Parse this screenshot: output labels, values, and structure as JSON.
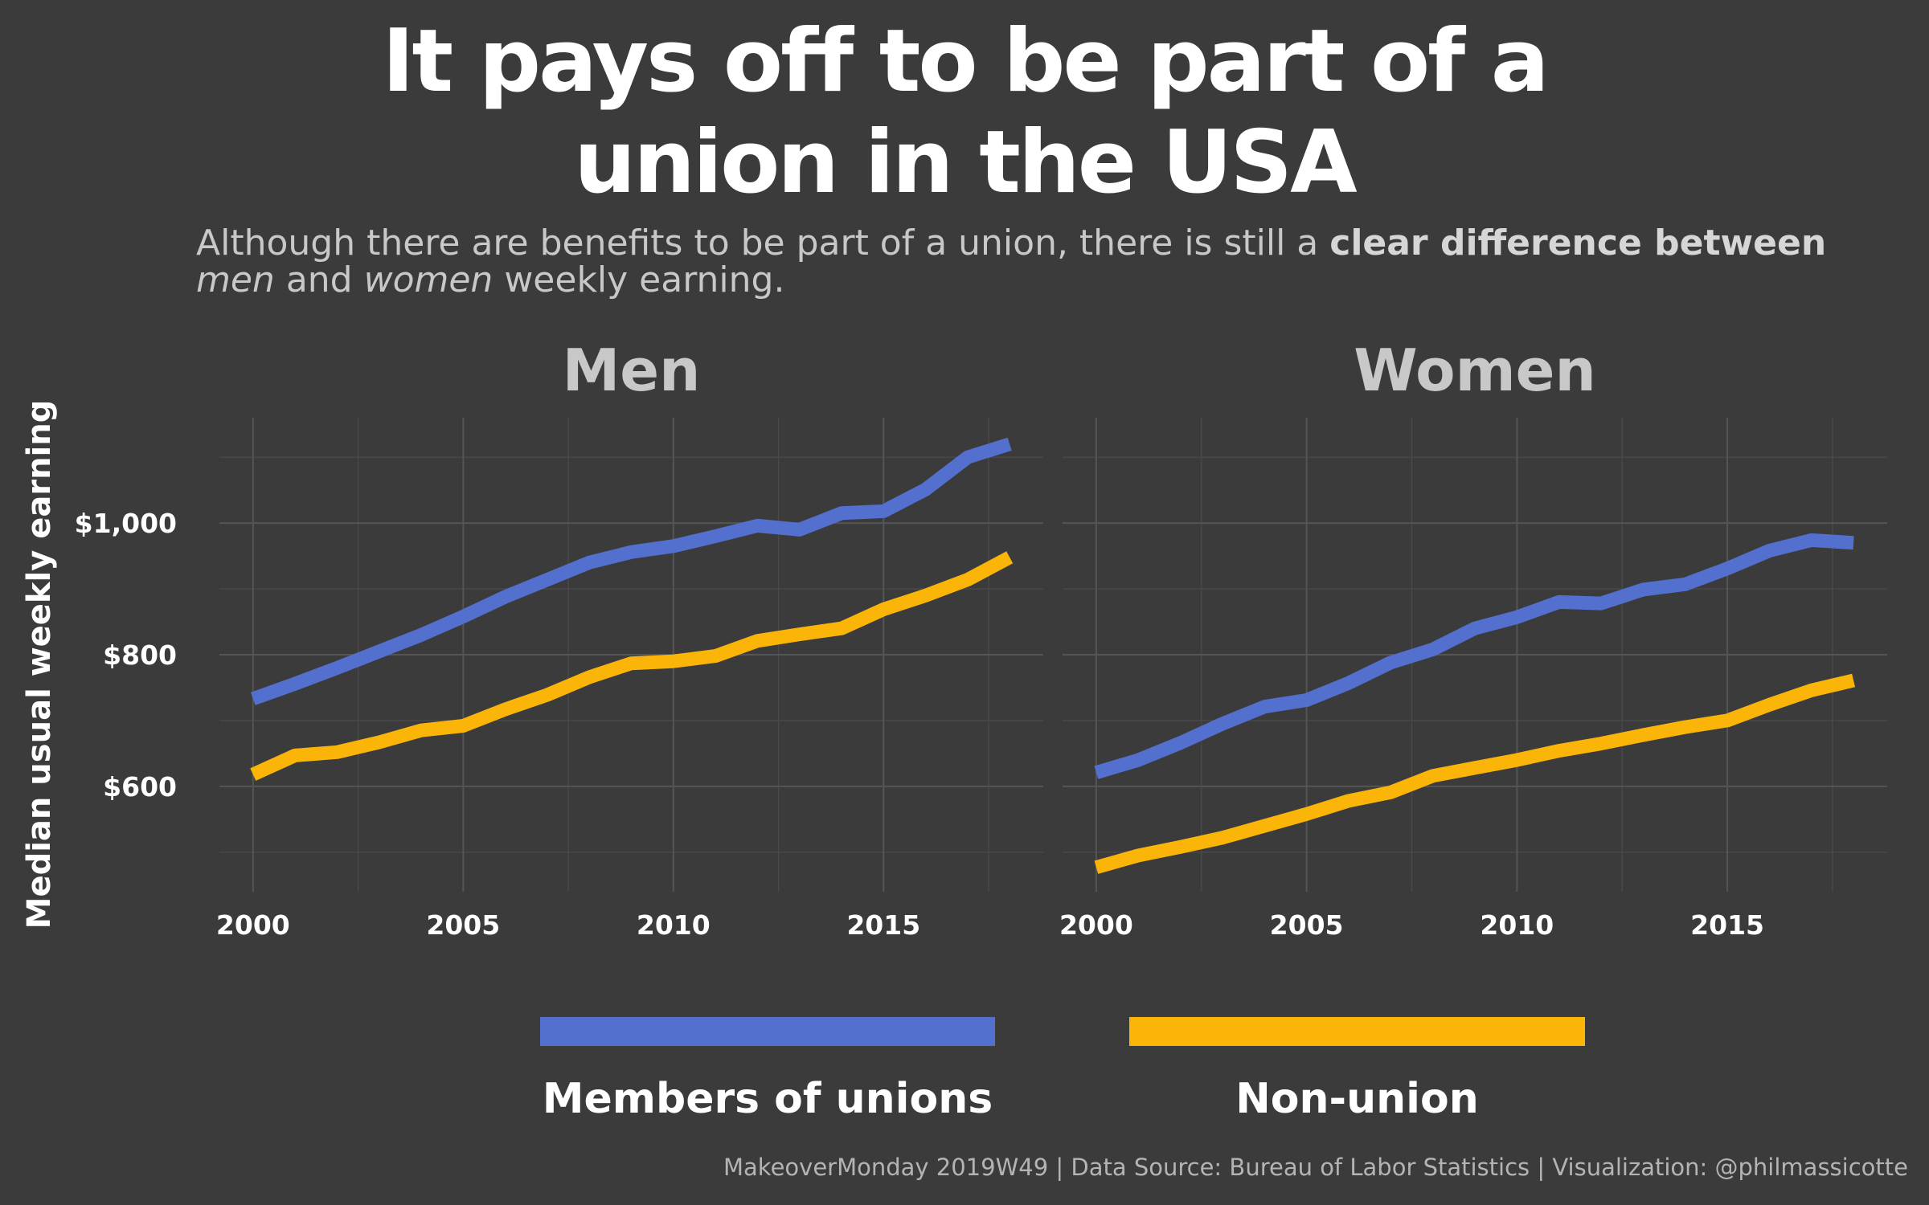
{
  "title_line1": "It pays off to be part of a",
  "title_line2": "union in the USA",
  "subtitle": {
    "part1": "Although there are benefits to be part of a union, there is still a ",
    "bold": "clear difference between",
    "men": "men",
    "and": " and ",
    "women": "women",
    "tail": " weekly earning."
  },
  "caption": "MakeoverMonday 2019W49 | Data Source: Bureau of Labor Statistics | Visualization: @philmassicotte",
  "colors": {
    "background": "#3b3b3b",
    "union": "#5470cf",
    "nonunion": "#fbb509",
    "grid": "#4a4a4a"
  },
  "chart_data": {
    "type": "line",
    "ylabel": "Median usual weekly earning",
    "xlabel": "",
    "ylim": [
      440,
      1160
    ],
    "xlim": [
      1999.2,
      2018.8
    ],
    "y_ticks": [
      600,
      800,
      1000
    ],
    "y_tick_labels": [
      "$600",
      "$800",
      "$1,000"
    ],
    "x_ticks": [
      2000,
      2005,
      2010,
      2015
    ],
    "x_tick_labels": [
      "2000",
      "2005",
      "2010",
      "2015"
    ],
    "grid": true,
    "legend_position": "bottom",
    "legend": [
      "Members of unions",
      "Non-union"
    ],
    "x": [
      2000,
      2001,
      2002,
      2003,
      2004,
      2005,
      2006,
      2007,
      2008,
      2009,
      2010,
      2011,
      2012,
      2013,
      2014,
      2015,
      2016,
      2017,
      2018
    ],
    "panels": [
      {
        "title": "Men",
        "series": [
          {
            "name": "Members of unions",
            "values": [
              733,
              756,
              780,
              805,
              830,
              858,
              888,
              914,
              940,
              956,
              965,
              980,
              996,
              990,
              1015,
              1018,
              1051,
              1100,
              1120
            ]
          },
          {
            "name": "Non-union",
            "values": [
              618,
              647,
              652,
              667,
              685,
              692,
              717,
              739,
              766,
              787,
              790,
              798,
              821,
              831,
              840,
              869,
              890,
              914,
              948
            ]
          }
        ]
      },
      {
        "title": "Women",
        "series": [
          {
            "name": "Members of unions",
            "values": [
              621,
              640,
              666,
              695,
              721,
              731,
              757,
              788,
              808,
              840,
              857,
              880,
              878,
              899,
              907,
              931,
              958,
              974,
              970
            ]
          },
          {
            "name": "Non-union",
            "values": [
              477,
              495,
              508,
              522,
              540,
              558,
              578,
              591,
              616,
              628,
              640,
              654,
              665,
              678,
              690,
              700,
              724,
              746,
              761
            ]
          }
        ]
      }
    ]
  }
}
